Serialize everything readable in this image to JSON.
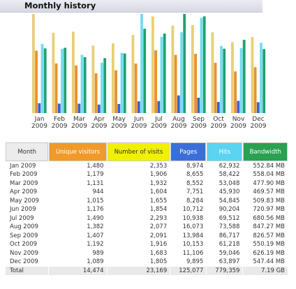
{
  "section_title": "Monthly history",
  "colors": {
    "visitors": "#f09a2a",
    "visits": "#f0f000",
    "pages": "#3b6fd8",
    "hits": "#5ad4f0",
    "bandwidth": "#2aa050"
  },
  "chart_data": {
    "type": "bar",
    "categories": [
      "Jan",
      "Feb",
      "Mar",
      "Apr",
      "May",
      "Jun",
      "Jul",
      "Aug",
      "Sep",
      "Oct",
      "Nov",
      "Dec"
    ],
    "years": [
      "2009",
      "2009",
      "2009",
      "2009",
      "2009",
      "2009",
      "2009",
      "2009",
      "2009",
      "2009",
      "2009",
      "2009"
    ],
    "series": [
      {
        "key": "visits",
        "color": "#e8cf78",
        "values": [
          2353,
          1906,
          1932,
          1604,
          1655,
          1854,
          2293,
          2077,
          2091,
          1916,
          1683,
          1805
        ]
      },
      {
        "key": "visitors",
        "color": "#e89030",
        "values": [
          1480,
          1179,
          1131,
          944,
          1015,
          1176,
          1490,
          1382,
          1407,
          1192,
          989,
          1089
        ]
      },
      {
        "key": "pages",
        "color": "#3a63c8",
        "values": [
          8974,
          8655,
          8552,
          7751,
          8284,
          10712,
          10938,
          16073,
          13984,
          10153,
          11106,
          9895
        ]
      },
      {
        "key": "hits",
        "color": "#72dcf0",
        "values": [
          62932,
          58422,
          53048,
          45930,
          54845,
          90204,
          69512,
          73588,
          86717,
          61218,
          59046,
          63897
        ]
      },
      {
        "key": "bandwidth",
        "color": "#22a070",
        "values": [
          552.84,
          558.04,
          477.9,
          469.57,
          509.83,
          720.97,
          680.56,
          847.27,
          826.57,
          550.19,
          626.19,
          547.44
        ]
      }
    ]
  },
  "table": {
    "headers": {
      "month": "Month",
      "visitors": "Unique visitors",
      "visits": "Number of visits",
      "pages": "Pages",
      "hits": "Hits",
      "bandwidth": "Bandwidth"
    },
    "rows": [
      {
        "month": "Jan 2009",
        "visitors": "1,480",
        "visits": "2,353",
        "pages": "8,974",
        "hits": "62,932",
        "bandwidth": "552.84 MB"
      },
      {
        "month": "Feb 2009",
        "visitors": "1,179",
        "visits": "1,906",
        "pages": "8,655",
        "hits": "58,422",
        "bandwidth": "558.04 MB"
      },
      {
        "month": "Mar 2009",
        "visitors": "1,131",
        "visits": "1,932",
        "pages": "8,552",
        "hits": "53,048",
        "bandwidth": "477.90 MB"
      },
      {
        "month": "Apr 2009",
        "visitors": "944",
        "visits": "1,604",
        "pages": "7,751",
        "hits": "45,930",
        "bandwidth": "469.57 MB"
      },
      {
        "month": "May 2009",
        "visitors": "1,015",
        "visits": "1,655",
        "pages": "8,284",
        "hits": "54,845",
        "bandwidth": "509.83 MB"
      },
      {
        "month": "Jun 2009",
        "visitors": "1,176",
        "visits": "1,854",
        "pages": "10,712",
        "hits": "90,204",
        "bandwidth": "720.97 MB"
      },
      {
        "month": "Jul 2009",
        "visitors": "1,490",
        "visits": "2,293",
        "pages": "10,938",
        "hits": "69,512",
        "bandwidth": "680.56 MB"
      },
      {
        "month": "Aug 2009",
        "visitors": "1,382",
        "visits": "2,077",
        "pages": "16,073",
        "hits": "73,588",
        "bandwidth": "847.27 MB"
      },
      {
        "month": "Sep 2009",
        "visitors": "1,407",
        "visits": "2,091",
        "pages": "13,984",
        "hits": "86,717",
        "bandwidth": "826.57 MB"
      },
      {
        "month": "Oct 2009",
        "visitors": "1,192",
        "visits": "1,916",
        "pages": "10,153",
        "hits": "61,218",
        "bandwidth": "550.19 MB"
      },
      {
        "month": "Nov 2009",
        "visitors": "989",
        "visits": "1,683",
        "pages": "11,106",
        "hits": "59,046",
        "bandwidth": "626.19 MB"
      },
      {
        "month": "Dec 2009",
        "visitors": "1,089",
        "visits": "1,805",
        "pages": "9,895",
        "hits": "63,897",
        "bandwidth": "547.44 MB"
      }
    ],
    "total": {
      "month": "Total",
      "visitors": "14,474",
      "visits": "23,169",
      "pages": "125,077",
      "hits": "779,359",
      "bandwidth": "7.19 GB"
    }
  }
}
